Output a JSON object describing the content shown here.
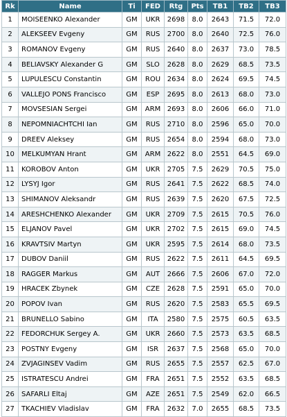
{
  "headers": [
    "Rk",
    "Name",
    "Ti",
    "FED",
    "Rtg",
    "Pts",
    "TB1",
    "TB2",
    "TB3"
  ],
  "rows": [
    {
      "rk": "1",
      "name": "MOISEENKO Alexander",
      "ti": "GM",
      "fed": "UKR",
      "rtg": "2698",
      "pts": "8.0",
      "tb1": "2643",
      "tb2": "71.5",
      "tb3": "72.0"
    },
    {
      "rk": "2",
      "name": "ALEKSEEV Evgeny",
      "ti": "GM",
      "fed": "RUS",
      "rtg": "2700",
      "pts": "8.0",
      "tb1": "2640",
      "tb2": "72.5",
      "tb3": "76.0"
    },
    {
      "rk": "3",
      "name": "ROMANOV Evgeny",
      "ti": "GM",
      "fed": "RUS",
      "rtg": "2640",
      "pts": "8.0",
      "tb1": "2637",
      "tb2": "73.0",
      "tb3": "78.5"
    },
    {
      "rk": "4",
      "name": "BELIAVSKY Alexander G",
      "ti": "GM",
      "fed": "SLO",
      "rtg": "2628",
      "pts": "8.0",
      "tb1": "2629",
      "tb2": "68.5",
      "tb3": "73.5"
    },
    {
      "rk": "5",
      "name": "LUPULESCU Constantin",
      "ti": "GM",
      "fed": "ROU",
      "rtg": "2634",
      "pts": "8.0",
      "tb1": "2624",
      "tb2": "69.5",
      "tb3": "74.5"
    },
    {
      "rk": "6",
      "name": "VALLEJO PONS Francisco",
      "ti": "GM",
      "fed": "ESP",
      "rtg": "2695",
      "pts": "8.0",
      "tb1": "2613",
      "tb2": "68.0",
      "tb3": "73.0"
    },
    {
      "rk": "7",
      "name": "MOVSESIAN Sergei",
      "ti": "GM",
      "fed": "ARM",
      "rtg": "2693",
      "pts": "8.0",
      "tb1": "2606",
      "tb2": "66.0",
      "tb3": "71.0"
    },
    {
      "rk": "8",
      "name": "NEPOMNIACHTCHI Ian",
      "ti": "GM",
      "fed": "RUS",
      "rtg": "2710",
      "pts": "8.0",
      "tb1": "2596",
      "tb2": "65.0",
      "tb3": "70.0"
    },
    {
      "rk": "9",
      "name": "DREEV Aleksey",
      "ti": "GM",
      "fed": "RUS",
      "rtg": "2654",
      "pts": "8.0",
      "tb1": "2594",
      "tb2": "68.0",
      "tb3": "73.0"
    },
    {
      "rk": "10",
      "name": "MELKUMYAN Hrant",
      "ti": "GM",
      "fed": "ARM",
      "rtg": "2622",
      "pts": "8.0",
      "tb1": "2551",
      "tb2": "64.5",
      "tb3": "69.0"
    },
    {
      "rk": "11",
      "name": "KOROBOV Anton",
      "ti": "GM",
      "fed": "UKR",
      "rtg": "2705",
      "pts": "7.5",
      "tb1": "2629",
      "tb2": "70.5",
      "tb3": "75.0"
    },
    {
      "rk": "12",
      "name": "LYSYJ Igor",
      "ti": "GM",
      "fed": "RUS",
      "rtg": "2641",
      "pts": "7.5",
      "tb1": "2622",
      "tb2": "68.5",
      "tb3": "74.0"
    },
    {
      "rk": "13",
      "name": "SHIMANOV Aleksandr",
      "ti": "GM",
      "fed": "RUS",
      "rtg": "2639",
      "pts": "7.5",
      "tb1": "2620",
      "tb2": "67.5",
      "tb3": "72.5"
    },
    {
      "rk": "14",
      "name": "ARESHCHENKO Alexander",
      "ti": "GM",
      "fed": "UKR",
      "rtg": "2709",
      "pts": "7.5",
      "tb1": "2615",
      "tb2": "70.5",
      "tb3": "76.0"
    },
    {
      "rk": "15",
      "name": "ELJANOV Pavel",
      "ti": "GM",
      "fed": "UKR",
      "rtg": "2702",
      "pts": "7.5",
      "tb1": "2615",
      "tb2": "69.0",
      "tb3": "74.5"
    },
    {
      "rk": "16",
      "name": "KRAVTSIV Martyn",
      "ti": "GM",
      "fed": "UKR",
      "rtg": "2595",
      "pts": "7.5",
      "tb1": "2614",
      "tb2": "68.0",
      "tb3": "73.5"
    },
    {
      "rk": "17",
      "name": "DUBOV Daniil",
      "ti": "GM",
      "fed": "RUS",
      "rtg": "2622",
      "pts": "7.5",
      "tb1": "2611",
      "tb2": "64.5",
      "tb3": "69.5"
    },
    {
      "rk": "18",
      "name": "RAGGER Markus",
      "ti": "GM",
      "fed": "AUT",
      "rtg": "2666",
      "pts": "7.5",
      "tb1": "2606",
      "tb2": "67.0",
      "tb3": "72.0"
    },
    {
      "rk": "19",
      "name": "HRACEK Zbynek",
      "ti": "GM",
      "fed": "CZE",
      "rtg": "2628",
      "pts": "7.5",
      "tb1": "2591",
      "tb2": "65.0",
      "tb3": "70.0"
    },
    {
      "rk": "20",
      "name": "POPOV Ivan",
      "ti": "GM",
      "fed": "RUS",
      "rtg": "2620",
      "pts": "7.5",
      "tb1": "2583",
      "tb2": "65.5",
      "tb3": "69.5"
    },
    {
      "rk": "21",
      "name": "BRUNELLO Sabino",
      "ti": "GM",
      "fed": "ITA",
      "rtg": "2580",
      "pts": "7.5",
      "tb1": "2575",
      "tb2": "60.5",
      "tb3": "63.5"
    },
    {
      "rk": "22",
      "name": "FEDORCHUK Sergey A.",
      "ti": "GM",
      "fed": "UKR",
      "rtg": "2660",
      "pts": "7.5",
      "tb1": "2573",
      "tb2": "63.5",
      "tb3": "68.5"
    },
    {
      "rk": "23",
      "name": "POSTNY Evgeny",
      "ti": "GM",
      "fed": "ISR",
      "rtg": "2637",
      "pts": "7.5",
      "tb1": "2568",
      "tb2": "65.0",
      "tb3": "70.0"
    },
    {
      "rk": "24",
      "name": "ZVJAGINSEV Vadim",
      "ti": "GM",
      "fed": "RUS",
      "rtg": "2655",
      "pts": "7.5",
      "tb1": "2557",
      "tb2": "62.5",
      "tb3": "67.0"
    },
    {
      "rk": "25",
      "name": "ISTRATESCU Andrei",
      "ti": "GM",
      "fed": "FRA",
      "rtg": "2651",
      "pts": "7.5",
      "tb1": "2552",
      "tb2": "63.5",
      "tb3": "68.5"
    },
    {
      "rk": "26",
      "name": "SAFARLI Eltaj",
      "ti": "GM",
      "fed": "AZE",
      "rtg": "2651",
      "pts": "7.5",
      "tb1": "2549",
      "tb2": "62.0",
      "tb3": "66.5"
    },
    {
      "rk": "27",
      "name": "TKACHIEV Vladislav",
      "ti": "GM",
      "fed": "FRA",
      "rtg": "2632",
      "pts": "7.0",
      "tb1": "2655",
      "tb2": "68.5",
      "tb3": "73.5"
    }
  ]
}
